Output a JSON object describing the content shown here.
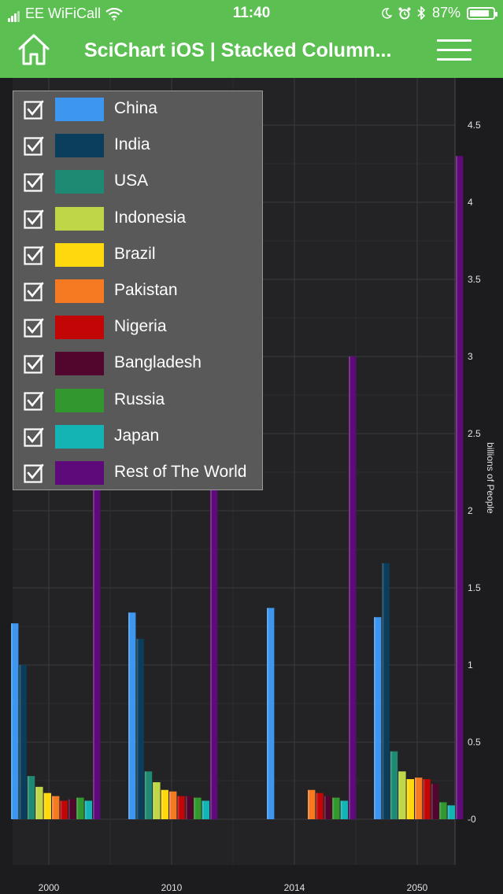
{
  "status_bar": {
    "carrier": "EE WiFiCall",
    "time": "11:40",
    "battery": "87%",
    "battery_level": 0.87,
    "icons": [
      "signal-icon",
      "wifi-icon",
      "moon-icon",
      "alarm-icon",
      "bluetooth-icon",
      "battery-icon"
    ]
  },
  "navbar": {
    "title": "SciChart iOS | Stacked Column...",
    "home_icon": "home-icon",
    "menu_icon": "hamburger-menu-icon",
    "color": "#5bbf52"
  },
  "legend": {
    "items": [
      {
        "label": "China",
        "color": "#3d97f0",
        "checked": true
      },
      {
        "label": "India",
        "color": "#0b3e5c",
        "checked": true
      },
      {
        "label": "USA",
        "color": "#1e8a74",
        "checked": true
      },
      {
        "label": "Indonesia",
        "color": "#bfd646",
        "checked": true
      },
      {
        "label": "Brazil",
        "color": "#ffd90e",
        "checked": true
      },
      {
        "label": "Pakistan",
        "color": "#f57a22",
        "checked": true
      },
      {
        "label": "Nigeria",
        "color": "#c20606",
        "checked": true
      },
      {
        "label": "Bangladesh",
        "color": "#52062e",
        "checked": true
      },
      {
        "label": "Russia",
        "color": "#33972f",
        "checked": true
      },
      {
        "label": "Japan",
        "color": "#14b4b4",
        "checked": true
      },
      {
        "label": "Rest of The World",
        "color": "#5f0a7a",
        "checked": true
      }
    ]
  },
  "chart_data": {
    "type": "bar",
    "categories": [
      "2000",
      "2010",
      "2014",
      "2050"
    ],
    "ylabel": "billions of People",
    "y_axis_position": "right",
    "ylim": [
      0,
      4.5
    ],
    "yticks": [
      "-0",
      "0.5",
      "1",
      "1.5",
      "2",
      "2.5",
      "3",
      "3.5",
      "4",
      "4.5"
    ],
    "grid": true,
    "legend_position": "top-left",
    "series": [
      {
        "name": "China",
        "values": [
          1.27,
          1.34,
          1.37,
          1.31
        ]
      },
      {
        "name": "India",
        "values": [
          1.0,
          1.17,
          0,
          1.66
        ]
      },
      {
        "name": "USA",
        "values": [
          0.28,
          0.31,
          0,
          0.44
        ]
      },
      {
        "name": "Indonesia",
        "values": [
          0.21,
          0.24,
          0,
          0.31
        ]
      },
      {
        "name": "Brazil",
        "values": [
          0.17,
          0.19,
          0,
          0.26
        ]
      },
      {
        "name": "Pakistan",
        "values": [
          0.15,
          0.18,
          0.19,
          0.27
        ]
      },
      {
        "name": "Nigeria",
        "values": [
          0.12,
          0.15,
          0.17,
          0.26
        ]
      },
      {
        "name": "Bangladesh",
        "values": [
          0.13,
          0.15,
          0.15,
          0.23
        ]
      },
      {
        "name": "Russia",
        "values": [
          0.14,
          0.14,
          0.14,
          0.11
        ]
      },
      {
        "name": "Japan",
        "values": [
          0.12,
          0.12,
          0.12,
          0.09
        ]
      },
      {
        "name": "Rest of The World",
        "values": [
          2.4,
          2.3,
          3.0,
          4.3
        ]
      }
    ]
  }
}
